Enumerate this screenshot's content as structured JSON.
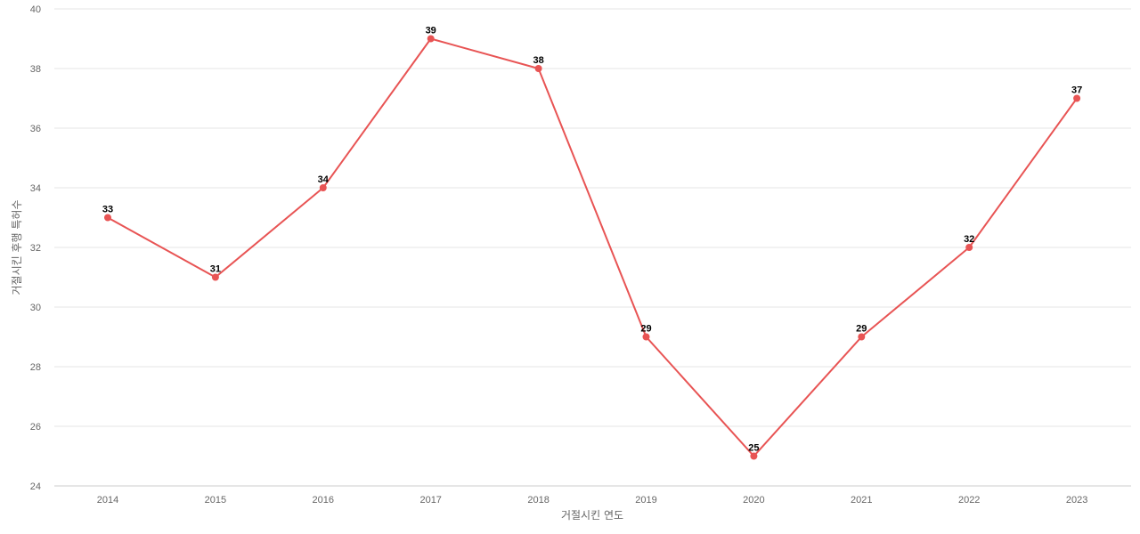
{
  "chart_data": {
    "type": "line",
    "title": "",
    "xlabel": "거절시킨 연도",
    "ylabel": "거절시킨 후행 특허수",
    "categories": [
      "2014",
      "2015",
      "2016",
      "2017",
      "2018",
      "2019",
      "2020",
      "2021",
      "2022",
      "2023"
    ],
    "series": [
      {
        "color": "#e85454",
        "values": [
          33,
          31,
          34,
          39,
          38,
          29,
          25,
          29,
          32,
          37
        ]
      }
    ],
    "ylim": [
      24,
      40
    ],
    "yticks": [
      "24",
      "26",
      "28",
      "30",
      "32",
      "34",
      "36",
      "38",
      "40"
    ],
    "grid": true,
    "legend": "none"
  }
}
